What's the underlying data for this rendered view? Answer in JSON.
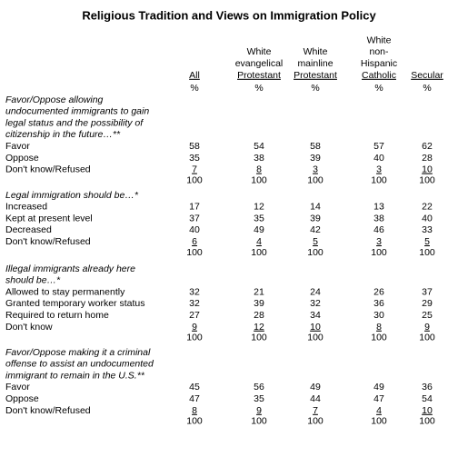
{
  "title": "Religious Tradition and Views on Immigration Policy",
  "columns": [
    {
      "label": [
        "All"
      ],
      "unit": "%"
    },
    {
      "label": [
        "White",
        "evangelical",
        "Protestant"
      ],
      "unit": "%"
    },
    {
      "label": [
        "White",
        "mainline",
        "Protestant"
      ],
      "unit": "%"
    },
    {
      "label": [
        "White",
        "non-",
        "Hispanic",
        "Catholic"
      ],
      "unit": "%"
    },
    {
      "label": [
        "Secular"
      ],
      "unit": "%"
    }
  ],
  "sections": [
    {
      "question": [
        "Favor/Oppose allowing",
        "undocumented immigrants to gain",
        "legal status and the possibility of",
        "citizenship in the future…**"
      ],
      "rows": [
        {
          "label": "Favor",
          "values": [
            58,
            54,
            58,
            57,
            62
          ]
        },
        {
          "label": "Oppose",
          "values": [
            35,
            38,
            39,
            40,
            28
          ]
        },
        {
          "label": "Don't know/Refused",
          "values": [
            7,
            8,
            3,
            3,
            10
          ]
        }
      ],
      "total": [
        100,
        100,
        100,
        100,
        100
      ]
    },
    {
      "question": [
        "Legal immigration should be…*"
      ],
      "rows": [
        {
          "label": "Increased",
          "values": [
            17,
            12,
            14,
            13,
            22
          ]
        },
        {
          "label": "Kept at present level",
          "values": [
            37,
            35,
            39,
            38,
            40
          ]
        },
        {
          "label": "Decreased",
          "values": [
            40,
            49,
            42,
            46,
            33
          ]
        },
        {
          "label": "Don't know/Refused",
          "values": [
            6,
            4,
            5,
            3,
            5
          ]
        }
      ],
      "total": [
        100,
        100,
        100,
        100,
        100
      ]
    },
    {
      "question": [
        "Illegal immigrants already here",
        "should be…*"
      ],
      "rows": [
        {
          "label": "Allowed to stay permanently",
          "values": [
            32,
            21,
            24,
            26,
            37
          ]
        },
        {
          "label": "Granted temporary worker status",
          "values": [
            32,
            39,
            32,
            36,
            29
          ]
        },
        {
          "label": "Required to return home",
          "values": [
            27,
            28,
            34,
            30,
            25
          ]
        },
        {
          "label": "Don't know",
          "values": [
            9,
            12,
            10,
            8,
            9
          ]
        }
      ],
      "total": [
        100,
        100,
        100,
        100,
        100
      ]
    },
    {
      "question": [
        "Favor/Oppose making it a criminal",
        "offense to assist an undocumented",
        "immigrant to remain in the U.S.**"
      ],
      "rows": [
        {
          "label": "Favor",
          "values": [
            45,
            56,
            49,
            49,
            36
          ]
        },
        {
          "label": "Oppose",
          "values": [
            47,
            35,
            44,
            47,
            54
          ]
        },
        {
          "label": "Don't know/Refused",
          "values": [
            8,
            9,
            7,
            4,
            10
          ]
        }
      ],
      "total": [
        100,
        100,
        100,
        100,
        100
      ]
    }
  ]
}
